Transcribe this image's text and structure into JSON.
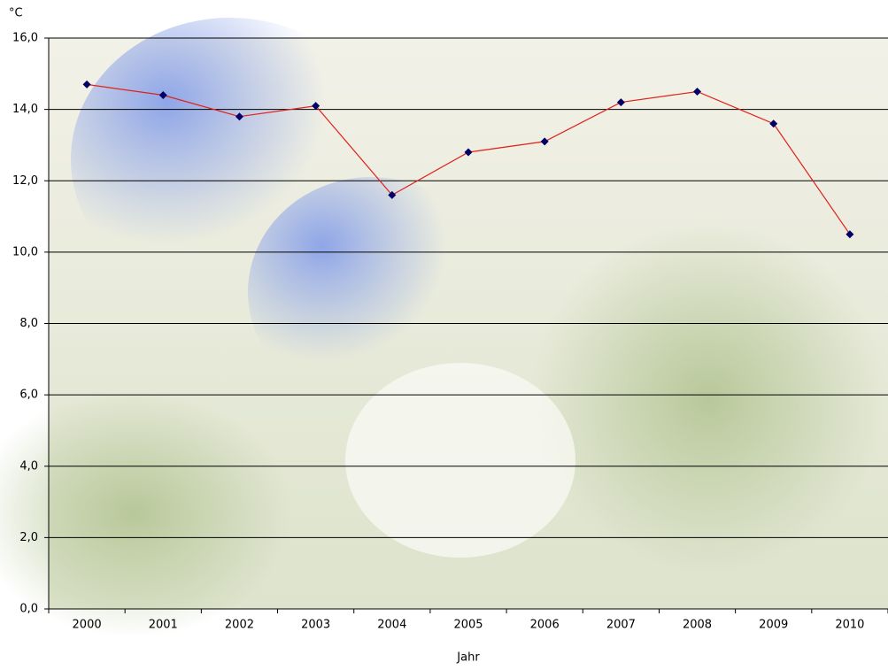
{
  "chart_data": {
    "type": "line",
    "y_label": "°C",
    "x_label": "Jahr",
    "categories": [
      "2000",
      "2001",
      "2002",
      "2003",
      "2004",
      "2005",
      "2006",
      "2007",
      "2008",
      "2009",
      "2010"
    ],
    "series": [
      {
        "color": "#e0201a",
        "marker_color": "#000066",
        "values": [
          14.7,
          14.4,
          13.8,
          14.1,
          11.6,
          12.8,
          13.1,
          14.2,
          14.5,
          13.6,
          10.5
        ]
      }
    ],
    "ylim": [
      0,
      16
    ],
    "yticks": [
      {
        "value": 0,
        "label": "0,0"
      },
      {
        "value": 2,
        "label": "2,0"
      },
      {
        "value": 4,
        "label": "4,0"
      },
      {
        "value": 6,
        "label": "6,0"
      },
      {
        "value": 8,
        "label": "8,0"
      },
      {
        "value": 10,
        "label": "10,0"
      },
      {
        "value": 12,
        "label": "12,0"
      },
      {
        "value": 14,
        "label": "14,0"
      },
      {
        "value": 16,
        "label": "16,0"
      }
    ],
    "grid": true
  }
}
